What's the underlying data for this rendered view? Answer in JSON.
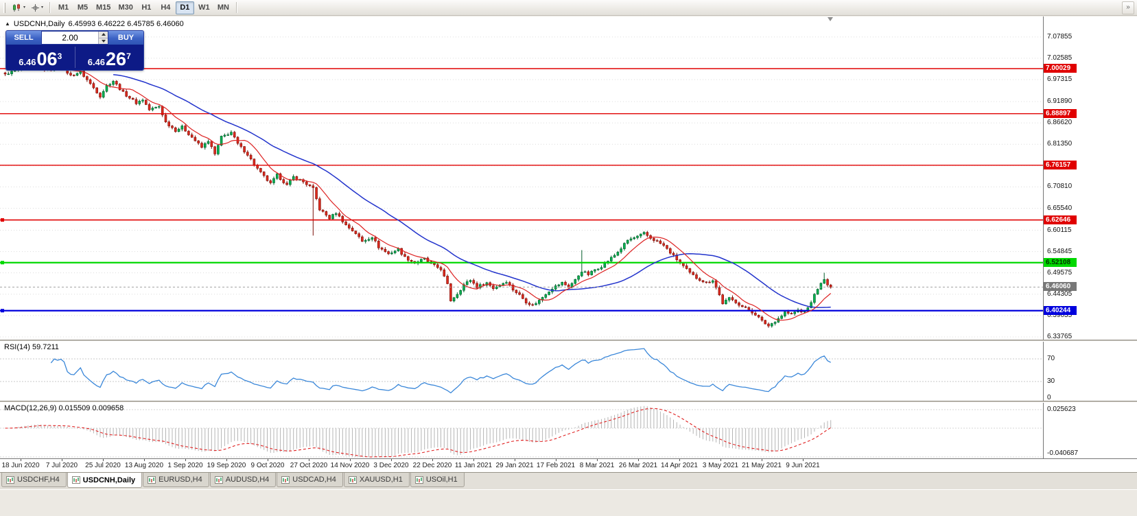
{
  "toolbar": {
    "timeframes": [
      "M1",
      "M5",
      "M15",
      "M30",
      "H1",
      "H4",
      "D1",
      "W1",
      "MN"
    ],
    "active_timeframe": "D1"
  },
  "chart_header": {
    "symbol_title": "USDCNH,Daily",
    "ohlc_text": "6.45993 6.46222 6.45785 6.46060"
  },
  "trade_panel": {
    "sell_label": "SELL",
    "buy_label": "BUY",
    "volume": "2.00",
    "sell_price": {
      "base": "6.46",
      "big": "06",
      "sup": "3"
    },
    "buy_price": {
      "base": "6.46",
      "big": "26",
      "sup": "7"
    }
  },
  "price_axis": {
    "labels": [
      "7.07855",
      "7.02585",
      "6.97315",
      "6.91890",
      "6.86620",
      "6.81350",
      "6.76080",
      "6.70810",
      "6.65540",
      "6.60115",
      "6.54845",
      "6.49575",
      "6.44305",
      "6.39035",
      "6.33765"
    ]
  },
  "levels": [
    {
      "price": 7.00029,
      "label": "7.00029",
      "color": "#e00000",
      "text_color": "#ffffff",
      "width": 1.4,
      "handle": false
    },
    {
      "price": 6.88897,
      "label": "6.88897",
      "color": "#e00000",
      "text_color": "#ffffff",
      "width": 1.4,
      "handle": false
    },
    {
      "price": 6.76157,
      "label": "6.76157",
      "color": "#e00000",
      "text_color": "#ffffff",
      "width": 1.4,
      "handle": false
    },
    {
      "price": 6.62646,
      "label": "6.62646",
      "color": "#e00000",
      "text_color": "#ffffff",
      "width": 1.6,
      "handle": true
    },
    {
      "price": 6.52108,
      "label": "6.52108",
      "color": "#00d800",
      "text_color": "#003300",
      "width": 2.2,
      "handle": true
    },
    {
      "price": 6.40244,
      "label": "6.40244",
      "color": "#0000dd",
      "text_color": "#ffffff",
      "width": 2.2,
      "handle": true
    }
  ],
  "current_price": {
    "value": 6.4606,
    "label": "6.46060",
    "tag_color": "#787878",
    "text_color": "#ffffff"
  },
  "rsi_panel": {
    "label": "RSI(14) 59.7211",
    "period": 14,
    "value": 59.7211,
    "axis_labels": [
      "70",
      "30",
      "0"
    ],
    "line_color": "#3a87d9"
  },
  "macd_panel": {
    "label": "MACD(12,26,9) 0.015509 0.009658",
    "fast": 12,
    "slow": 26,
    "signal": 9,
    "macd_value": 0.015509,
    "signal_value": 0.009658,
    "axis_max": "0.025623",
    "axis_min": "-0.040687",
    "histogram_color": "#b4b4b4",
    "signal_color": "#e02020"
  },
  "date_axis": [
    "18 Jun 2020",
    "7 Jul 2020",
    "25 Jul 2020",
    "13 Aug 2020",
    "1 Sep 2020",
    "19 Sep 2020",
    "9 Oct 2020",
    "27 Oct 2020",
    "14 Nov 2020",
    "3 Dec 2020",
    "22 Dec 2020",
    "11 Jan 2021",
    "29 Jan 2021",
    "17 Feb 2021",
    "8 Mar 2021",
    "26 Mar 2021",
    "14 Apr 2021",
    "3 May 2021",
    "21 May 2021",
    "9 Jun 2021"
  ],
  "tabs": {
    "items": [
      "USDCHF,H4",
      "USDCNH,Daily",
      "EURUSD,H4",
      "AUDUSD,H4",
      "USDCAD,H4",
      "XAUUSD,H1",
      "USOil,H1"
    ],
    "active": "USDCNH,Daily"
  },
  "chart_data": {
    "type": "candlestick",
    "symbol": "USDCNH",
    "timeframe": "Daily",
    "current_ohlc": {
      "open": 6.45993,
      "high": 6.46222,
      "low": 6.45785,
      "close": 6.4606
    },
    "n_candles": 253,
    "up_color": "#00b050",
    "up_stroke": "#005c28",
    "down_color": "#dc2a1e",
    "down_stroke": "#7a0f08",
    "ma_fast": {
      "period": 9,
      "color": "#dd2222"
    },
    "ma_slow": {
      "period": 34,
      "color": "#2233cc"
    },
    "noise": 0.006,
    "price_path": [
      [
        0,
        6.987
      ],
      [
        5,
        7.0
      ],
      [
        10,
        7.005
      ],
      [
        13,
        6.995
      ],
      [
        17,
        7.006
      ],
      [
        20,
        6.983
      ],
      [
        23,
        6.992
      ],
      [
        26,
        6.963
      ],
      [
        29,
        6.9325
      ],
      [
        31,
        6.958
      ],
      [
        33,
        6.97
      ],
      [
        36,
        6.941
      ],
      [
        40,
        6.9156
      ],
      [
        42,
        6.924
      ],
      [
        44,
        6.8986
      ],
      [
        47,
        6.907
      ],
      [
        49,
        6.868
      ],
      [
        52,
        6.8477
      ],
      [
        54,
        6.856
      ],
      [
        57,
        6.831
      ],
      [
        60,
        6.8054
      ],
      [
        62,
        6.8224
      ],
      [
        64,
        6.7885
      ],
      [
        66,
        6.831
      ],
      [
        69,
        6.843
      ],
      [
        71,
        6.814
      ],
      [
        74,
        6.7885
      ],
      [
        76,
        6.763
      ],
      [
        78,
        6.7427
      ],
      [
        81,
        6.7156
      ],
      [
        83,
        6.7377
      ],
      [
        86,
        6.7122
      ],
      [
        88,
        6.7325
      ],
      [
        91,
        6.7206
      ],
      [
        94,
        6.7036
      ],
      [
        96,
        6.6528
      ],
      [
        99,
        6.6308
      ],
      [
        101,
        6.6444
      ],
      [
        104,
        6.6139
      ],
      [
        107,
        6.5935
      ],
      [
        109,
        6.5732
      ],
      [
        112,
        6.585
      ],
      [
        114,
        6.5596
      ],
      [
        117,
        6.5427
      ],
      [
        120,
        6.5545
      ],
      [
        122,
        6.534
      ],
      [
        125,
        6.5205
      ],
      [
        128,
        6.5306
      ],
      [
        130,
        6.5171
      ],
      [
        133,
        6.5053
      ],
      [
        135,
        6.4664
      ],
      [
        136,
        6.4274
      ],
      [
        138,
        6.4443
      ],
      [
        140,
        6.4664
      ],
      [
        142,
        6.4782
      ],
      [
        144,
        6.4613
      ],
      [
        147,
        6.4714
      ],
      [
        149,
        6.4579
      ],
      [
        151,
        6.4664
      ],
      [
        153,
        6.4749
      ],
      [
        155,
        6.4545
      ],
      [
        157,
        6.441
      ],
      [
        159,
        6.4241
      ],
      [
        161,
        6.4156
      ],
      [
        163,
        6.4274
      ],
      [
        165,
        6.4443
      ],
      [
        167,
        6.4579
      ],
      [
        170,
        6.4714
      ],
      [
        172,
        6.4613
      ],
      [
        174,
        6.4782
      ],
      [
        176,
        6.5003
      ],
      [
        178,
        6.4918
      ],
      [
        180,
        6.5037
      ],
      [
        182,
        6.5121
      ],
      [
        184,
        6.5257
      ],
      [
        186,
        6.5392
      ],
      [
        188,
        6.5562
      ],
      [
        190,
        6.5765
      ],
      [
        193,
        6.585
      ],
      [
        195,
        6.5935
      ],
      [
        197,
        6.5816
      ],
      [
        199,
        6.5732
      ],
      [
        201,
        6.563
      ],
      [
        203,
        6.546
      ],
      [
        205,
        6.529
      ],
      [
        207,
        6.5121
      ],
      [
        209,
        6.4952
      ],
      [
        211,
        6.4833
      ],
      [
        214,
        6.4714
      ],
      [
        216,
        6.4782
      ],
      [
        218,
        6.441
      ],
      [
        219,
        6.4206
      ],
      [
        221,
        6.4325
      ],
      [
        223,
        6.4241
      ],
      [
        225,
        6.4122
      ],
      [
        227,
        6.4038
      ],
      [
        229,
        6.3936
      ],
      [
        231,
        6.3766
      ],
      [
        233,
        6.3648
      ],
      [
        235,
        6.3766
      ],
      [
        237,
        6.3902
      ],
      [
        238,
        6.3986
      ],
      [
        240,
        6.3936
      ],
      [
        242,
        6.4038
      ],
      [
        243,
        6.3986
      ],
      [
        245,
        6.4071
      ],
      [
        246,
        6.4241
      ],
      [
        248,
        6.4579
      ],
      [
        250,
        6.4782
      ],
      [
        251,
        6.4664
      ],
      [
        252,
        6.4606
      ]
    ],
    "wick_overrides": [
      {
        "i": 94,
        "l": 6.588
      },
      {
        "i": 176,
        "h": 6.552
      },
      {
        "i": 250,
        "h": 6.496
      }
    ]
  }
}
